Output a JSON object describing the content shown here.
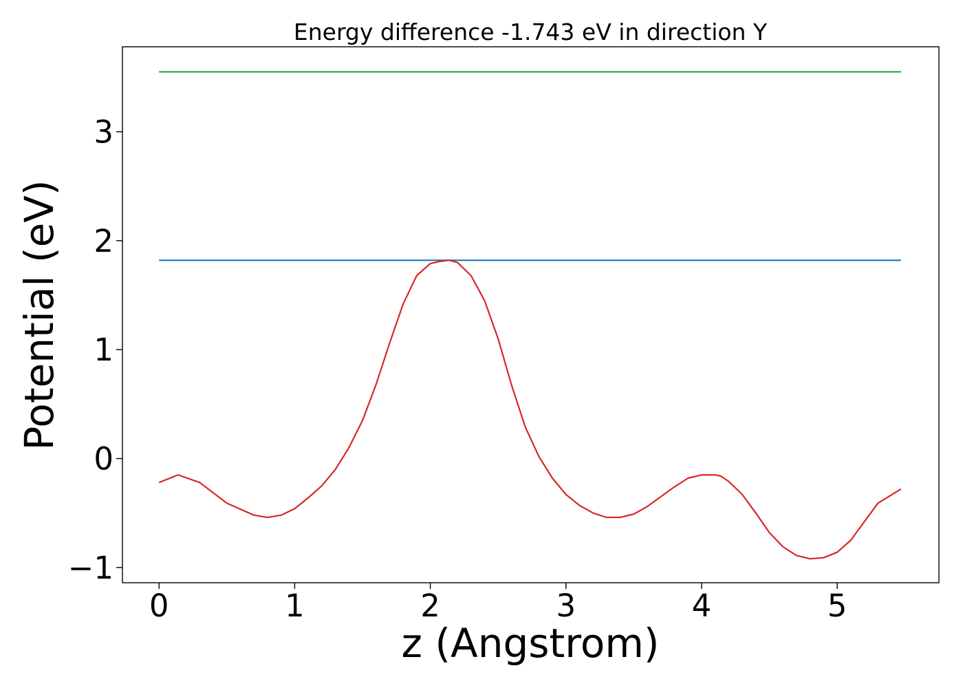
{
  "chart_data": {
    "type": "line",
    "title": "Energy difference -1.743 eV in direction Y",
    "xlabel": "z (Angstrom)",
    "ylabel": "Potential (eV)",
    "xlim": [
      -0.27,
      5.75
    ],
    "ylim": [
      -1.14,
      3.78
    ],
    "xticks": [
      0,
      1,
      2,
      3,
      4,
      5
    ],
    "xtick_labels": [
      "0",
      "1",
      "2",
      "3",
      "4",
      "5"
    ],
    "yticks": [
      -1,
      0,
      1,
      2,
      3
    ],
    "ytick_labels": [
      "−1",
      "0",
      "1",
      "2",
      "3"
    ],
    "grid": false,
    "legend": "none",
    "series": [
      {
        "color": "#2ca02c",
        "x": [
          0,
          5.47
        ],
        "y": [
          3.55,
          3.55
        ]
      },
      {
        "color": "#1f77b4",
        "x": [
          0,
          5.47
        ],
        "y": [
          1.82,
          1.82
        ]
      },
      {
        "color": "#d62728",
        "x": [
          0,
          0.14,
          0.3,
          0.5,
          0.7,
          0.8,
          0.9,
          1.0,
          1.1,
          1.2,
          1.3,
          1.4,
          1.5,
          1.6,
          1.7,
          1.8,
          1.9,
          2.0,
          2.07,
          2.14,
          2.2,
          2.3,
          2.4,
          2.5,
          2.6,
          2.7,
          2.8,
          2.9,
          3.0,
          3.1,
          3.2,
          3.3,
          3.4,
          3.5,
          3.6,
          3.7,
          3.8,
          3.9,
          4.0,
          4.1,
          4.14,
          4.2,
          4.3,
          4.4,
          4.5,
          4.6,
          4.7,
          4.8,
          4.9,
          5.0,
          5.1,
          5.2,
          5.3,
          5.47
        ],
        "y": [
          -0.22,
          -0.15,
          -0.22,
          -0.41,
          -0.52,
          -0.54,
          -0.52,
          -0.46,
          -0.36,
          -0.25,
          -0.1,
          0.1,
          0.35,
          0.68,
          1.06,
          1.42,
          1.68,
          1.79,
          1.81,
          1.82,
          1.8,
          1.68,
          1.45,
          1.1,
          0.67,
          0.29,
          0.02,
          -0.18,
          -0.33,
          -0.43,
          -0.5,
          -0.54,
          -0.54,
          -0.51,
          -0.44,
          -0.35,
          -0.26,
          -0.18,
          -0.15,
          -0.15,
          -0.16,
          -0.21,
          -0.33,
          -0.5,
          -0.68,
          -0.81,
          -0.89,
          -0.92,
          -0.91,
          -0.86,
          -0.75,
          -0.58,
          -0.41,
          -0.28
        ]
      }
    ]
  }
}
